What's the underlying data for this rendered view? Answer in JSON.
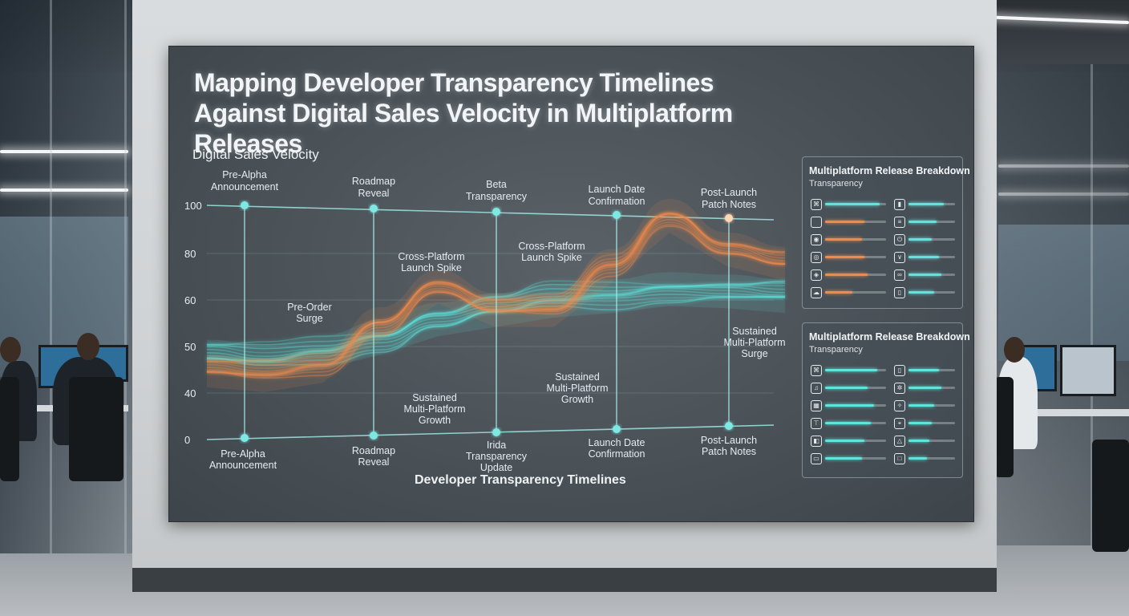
{
  "title": "Mapping Developer Transparency Timelines Against Digital Sales Velocity in Multiplatform Releases",
  "colors": {
    "teal": "#5fe3dc",
    "orange": "#f08a4b",
    "grid": "#8fe6e6",
    "text": "#eef2f4"
  },
  "chart_data": {
    "type": "area",
    "ylabel": "Digital Sales Velocity",
    "xlabel": "Developer Transparency Timelines",
    "yticks": [
      0,
      40,
      50,
      60,
      80,
      100
    ],
    "ylim": [
      0,
      100
    ],
    "grid": true,
    "milestones_top": [
      "Pre-Alpha Announcement",
      "Roadmap Reveal",
      "Beta Transparency",
      "Launch Date Confirmation",
      "Post-Launch Patch Notes"
    ],
    "milestones_bottom": [
      "Pre-Alpha Announcement",
      "Roadmap Reveal",
      "Irida Transparency Update",
      "Launch Date Confirmation",
      "Post-Launch Patch Notes"
    ],
    "annotations": [
      "Pre-Order Surge",
      "Cross-Platform Launch Spike",
      "Cross-Platform Launch Spike",
      "Sustained Multi-Platform Growth",
      "Sustained Multi-Platform Growth",
      "Sustained Multi-Platform Surge"
    ],
    "x": [
      0,
      0.5,
      1,
      1.5,
      2,
      2.5,
      3,
      3.5,
      4,
      4.5,
      5
    ],
    "series": [
      {
        "color": "#5fe3dc",
        "values": [
          48,
          47,
          49,
          52,
          56,
          58,
          60,
          62,
          65,
          64,
          62
        ]
      },
      {
        "color": "#f08a4b",
        "values": [
          45,
          44,
          46,
          55,
          66,
          58,
          58,
          75,
          96,
          82,
          76
        ]
      }
    ]
  },
  "panels": [
    {
      "title": "Multiplatform Release Breakdown",
      "subtitle": "Transparency",
      "left_rows": [
        {
          "icon": "controller-icon",
          "glyph": "⌘",
          "color": "#5fe3dc",
          "value": 0.9
        },
        {
          "icon": "square-icon",
          "glyph": "",
          "color": "#f08a4b",
          "value": 0.65
        },
        {
          "icon": "gamepad-icon",
          "glyph": "◉",
          "color": "#f08a4b",
          "value": 0.6
        },
        {
          "icon": "disc-icon",
          "glyph": "◎",
          "color": "#f08a4b",
          "value": 0.65
        },
        {
          "icon": "target-icon",
          "glyph": "◈",
          "color": "#f08a4b",
          "value": 0.7
        },
        {
          "icon": "cloud-icon",
          "glyph": "☁",
          "color": "#f08a4b",
          "value": 0.45
        }
      ],
      "right_rows": [
        {
          "icon": "console-icon",
          "glyph": "▮",
          "color": "#5fe3dc",
          "value": 0.75
        },
        {
          "icon": "menu-icon",
          "glyph": "≡",
          "color": "#5fe3dc",
          "value": 0.6
        },
        {
          "icon": "power-icon",
          "glyph": "⏻",
          "color": "#5fe3dc",
          "value": 0.5
        },
        {
          "icon": "chevron-icon",
          "glyph": "∨",
          "color": "#5fe3dc",
          "value": 0.65
        },
        {
          "icon": "link-icon",
          "glyph": "∞",
          "color": "#5fe3dc",
          "value": 0.7
        },
        {
          "icon": "tablet-icon",
          "glyph": "▯",
          "color": "#5fe3dc",
          "value": 0.55
        }
      ]
    },
    {
      "title": "Multiplatform Release Breakdown",
      "subtitle": "Transparency",
      "left_rows": [
        {
          "icon": "controller-icon",
          "glyph": "⌘",
          "color": "#5fe3dc",
          "value": 0.85
        },
        {
          "icon": "music-icon",
          "glyph": "♫",
          "color": "#5fe3dc",
          "value": 0.7
        },
        {
          "icon": "chip-icon",
          "glyph": "▦",
          "color": "#5fe3dc",
          "value": 0.8
        },
        {
          "icon": "tower-icon",
          "glyph": "⊤",
          "color": "#5fe3dc",
          "value": 0.75
        },
        {
          "icon": "handheld-icon",
          "glyph": "◧",
          "color": "#5fe3dc",
          "value": 0.65
        },
        {
          "icon": "display-icon",
          "glyph": "▭",
          "color": "#5fe3dc",
          "value": 0.6
        }
      ],
      "right_rows": [
        {
          "icon": "phone-icon",
          "glyph": "▯",
          "color": "#5fe3dc",
          "value": 0.65
        },
        {
          "icon": "gear-icon",
          "glyph": "✲",
          "color": "#5fe3dc",
          "value": 0.7
        },
        {
          "icon": "star-icon",
          "glyph": "✧",
          "color": "#5fe3dc",
          "value": 0.55
        },
        {
          "icon": "vr-icon",
          "glyph": "⌖",
          "color": "#5fe3dc",
          "value": 0.5
        },
        {
          "icon": "triangle-icon",
          "glyph": "△",
          "color": "#5fe3dc",
          "value": 0.45
        },
        {
          "icon": "box-icon",
          "glyph": "□",
          "color": "#5fe3dc",
          "value": 0.4
        }
      ]
    }
  ]
}
